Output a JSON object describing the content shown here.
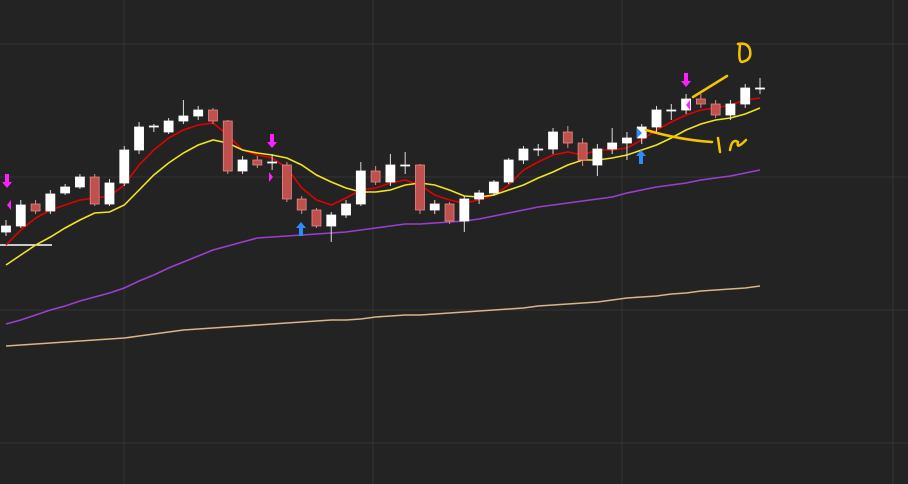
{
  "chart_data": {
    "type": "candlestick",
    "ylim": [
      0,
      484
    ],
    "up_color": "#ffffff",
    "down_color": "#c0504d",
    "open": [
      252,
      258,
      280,
      273,
      291,
      297,
      307,
      280,
      301,
      334,
      357,
      352,
      363,
      368,
      374,
      363,
      313,
      324,
      322,
      319,
      285,
      274,
      258,
      269,
      280,
      313,
      302,
      318,
      319,
      274,
      280,
      263,
      285,
      291,
      302,
      324,
      334,
      335,
      352,
      341,
      319,
      335,
      341,
      346,
      357,
      373,
      374,
      385,
      380,
      369,
      380,
      396
    ],
    "high": [
      264,
      284,
      284,
      294,
      300,
      310,
      310,
      305,
      338,
      362,
      360,
      366,
      384,
      378,
      376,
      364,
      328,
      328,
      330,
      322,
      288,
      276,
      272,
      284,
      322,
      318,
      330,
      332,
      320,
      284,
      282,
      288,
      294,
      304,
      326,
      338,
      340,
      356,
      358,
      346,
      340,
      356,
      352,
      360,
      378,
      380,
      390,
      390,
      384,
      384,
      400,
      406
    ],
    "low": [
      248,
      256,
      270,
      270,
      289,
      295,
      278,
      278,
      298,
      330,
      352,
      350,
      360,
      364,
      360,
      310,
      310,
      316,
      314,
      282,
      270,
      256,
      242,
      266,
      278,
      299,
      298,
      310,
      270,
      270,
      260,
      252,
      280,
      288,
      300,
      320,
      328,
      330,
      336,
      318,
      308,
      330,
      324,
      340,
      352,
      364,
      370,
      376,
      366,
      364,
      376,
      390
    ],
    "close": [
      258,
      279,
      273,
      290,
      297,
      307,
      280,
      301,
      334,
      357,
      358,
      363,
      368,
      374,
      363,
      313,
      324,
      319,
      322,
      285,
      274,
      258,
      269,
      280,
      313,
      302,
      319,
      319,
      274,
      280,
      263,
      285,
      291,
      302,
      324,
      335,
      335,
      352,
      341,
      324,
      335,
      341,
      346,
      357,
      374,
      374,
      385,
      380,
      369,
      380,
      396,
      396
    ],
    "series": [
      {
        "color": "#e00000",
        "values": [
          239,
          254,
          266,
          274,
          279,
          284,
          286,
          288,
          299,
          319,
          334,
          346,
          354,
          359,
          361,
          349,
          334,
          329,
          326,
          316,
          296,
          284,
          279,
          286,
          294,
          296,
          301,
          304,
          299,
          289,
          284,
          281,
          284,
          289,
          299,
          314,
          322,
          329,
          332,
          329,
          334,
          334,
          336,
          344,
          354,
          362,
          369,
          374,
          376,
          379,
          384,
          386
        ]
      },
      {
        "color": "#f2e41e",
        "values": [
          219,
          229,
          239,
          247,
          256,
          264,
          271,
          272,
          279,
          294,
          309,
          321,
          331,
          339,
          344,
          341,
          334,
          331,
          329,
          326,
          319,
          309,
          302,
          296,
          292,
          292,
          294,
          299,
          301,
          299,
          294,
          288,
          287,
          289,
          294,
          299,
          306,
          312,
          319,
          324,
          324,
          326,
          329,
          334,
          339,
          346,
          354,
          360,
          364,
          366,
          370,
          376
        ]
      },
      {
        "color": "#9b3fd0",
        "values": [
          160,
          164,
          169,
          174,
          178,
          183,
          187,
          191,
          196,
          203,
          209,
          216,
          222,
          228,
          234,
          238,
          242,
          246,
          247,
          248,
          249,
          250,
          251,
          252,
          254,
          256,
          258,
          260,
          260,
          261,
          262,
          263,
          265,
          268,
          271,
          274,
          277,
          279,
          281,
          283,
          285,
          287,
          291,
          294,
          297,
          299,
          301,
          304,
          306,
          308,
          311,
          314
        ]
      },
      {
        "color": "#d9b48a",
        "values": [
          138,
          139,
          140,
          141,
          142,
          143,
          144,
          145,
          146,
          148,
          150,
          152,
          154,
          155,
          156,
          157,
          158,
          159,
          160,
          161,
          162,
          163,
          164,
          164,
          165,
          167,
          168,
          169,
          169,
          170,
          171,
          172,
          173,
          174,
          175,
          176,
          178,
          179,
          180,
          181,
          182,
          184,
          186,
          187,
          188,
          190,
          191,
          193,
          194,
          195,
          196,
          198
        ]
      }
    ]
  }
}
